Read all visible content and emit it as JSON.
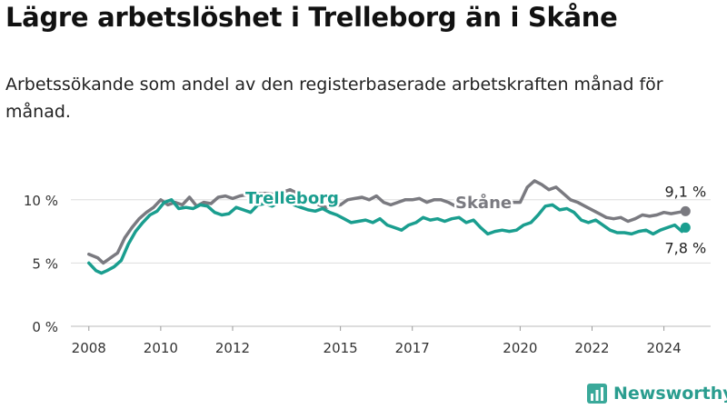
{
  "title": "Lägre arbetslöshet i Trelleborg än i Skåne",
  "subtitle": "Arbetssökande som andel av den registerbaserade arbetskraften månad för månad.",
  "brand": {
    "name": "Newsworthy",
    "icon": "bar-chart-logo-icon"
  },
  "colors": {
    "trelleborg": "#1a9e8f",
    "skane": "#7a7a80",
    "grid": "#dddddd",
    "axis": "#555555"
  },
  "chart_data": {
    "type": "line",
    "title": "Lägre arbetslöshet i Trelleborg än i Skåne",
    "xlabel": "",
    "ylabel": "",
    "xlim": [
      2007.5,
      2025.3
    ],
    "ylim": [
      0,
      12.5
    ],
    "y_ticks": [
      0,
      5,
      10
    ],
    "y_tick_labels": [
      "0 %",
      "5 %",
      "10 %"
    ],
    "x_ticks": [
      2008,
      2010,
      2012,
      2015,
      2017,
      2020,
      2022,
      2024
    ],
    "x_tick_labels": [
      "2008",
      "2010",
      "2012",
      "2015",
      "2017",
      "2020",
      "2022",
      "2024"
    ],
    "grid": "horizontal",
    "legend": "inline labels",
    "series": [
      {
        "name": "Skåne",
        "label": "Skåne",
        "end_label": "9,1 %",
        "x": [
          2008.0,
          2008.25,
          2008.4,
          2008.6,
          2008.8,
          2009.0,
          2009.2,
          2009.4,
          2009.6,
          2009.8,
          2010.0,
          2010.2,
          2010.4,
          2010.6,
          2010.8,
          2011.0,
          2011.2,
          2011.4,
          2011.6,
          2011.8,
          2012.0,
          2012.2,
          2012.4,
          2012.6,
          2012.8,
          2013.0,
          2013.2,
          2013.4,
          2013.6,
          2013.8,
          2014.0,
          2014.2,
          2014.4,
          2014.6,
          2014.8,
          2015.0,
          2015.2,
          2015.4,
          2015.6,
          2015.8,
          2016.0,
          2016.2,
          2016.4,
          2016.6,
          2016.8,
          2017.0,
          2017.2,
          2017.4,
          2017.6,
          2017.8,
          2018.0,
          2018.2,
          2018.4,
          2018.6,
          2018.8,
          2019.0,
          2019.2,
          2019.4,
          2019.6,
          2019.8,
          2020.0,
          2020.2,
          2020.4,
          2020.6,
          2020.8,
          2021.0,
          2021.2,
          2021.4,
          2021.6,
          2021.8,
          2022.0,
          2022.2,
          2022.4,
          2022.6,
          2022.8,
          2023.0,
          2023.2,
          2023.4,
          2023.6,
          2023.8,
          2024.0,
          2024.2,
          2024.4,
          2024.6
        ],
        "values": [
          5.7,
          5.4,
          5.0,
          5.4,
          5.8,
          7.0,
          7.8,
          8.5,
          9.0,
          9.4,
          10.0,
          9.6,
          9.8,
          9.6,
          10.2,
          9.5,
          9.8,
          9.7,
          10.2,
          10.3,
          10.1,
          10.3,
          10.4,
          10.5,
          10.5,
          10.5,
          10.4,
          10.6,
          10.8,
          10.5,
          10.4,
          10.0,
          9.6,
          9.4,
          9.5,
          9.6,
          10.0,
          10.1,
          10.2,
          10.0,
          10.3,
          9.8,
          9.6,
          9.8,
          10.0,
          10.0,
          10.1,
          9.8,
          10.0,
          10.0,
          9.8,
          9.5,
          9.6,
          9.8,
          9.9,
          9.9,
          10.0,
          9.8,
          9.7,
          9.8,
          9.8,
          11.0,
          11.5,
          11.2,
          10.8,
          11.0,
          10.5,
          10.0,
          9.8,
          9.5,
          9.2,
          8.9,
          8.6,
          8.5,
          8.6,
          8.3,
          8.5,
          8.8,
          8.7,
          8.8,
          9.0,
          8.9,
          9.0,
          9.1
        ]
      },
      {
        "name": "Trelleborg",
        "label": "Trelleborg",
        "end_label": "7,8 %",
        "x": [
          2008.0,
          2008.2,
          2008.35,
          2008.5,
          2008.7,
          2008.9,
          2009.1,
          2009.3,
          2009.5,
          2009.7,
          2009.9,
          2010.1,
          2010.3,
          2010.5,
          2010.7,
          2010.9,
          2011.1,
          2011.3,
          2011.5,
          2011.7,
          2011.9,
          2012.1,
          2012.3,
          2012.5,
          2012.7,
          2012.9,
          2013.1,
          2013.3,
          2013.5,
          2013.7,
          2013.9,
          2014.1,
          2014.3,
          2014.5,
          2014.7,
          2014.9,
          2015.1,
          2015.3,
          2015.5,
          2015.7,
          2015.9,
          2016.1,
          2016.3,
          2016.5,
          2016.7,
          2016.9,
          2017.1,
          2017.3,
          2017.5,
          2017.7,
          2017.9,
          2018.1,
          2018.3,
          2018.5,
          2018.7,
          2018.9,
          2019.1,
          2019.3,
          2019.5,
          2019.7,
          2019.9,
          2020.1,
          2020.3,
          2020.5,
          2020.7,
          2020.9,
          2021.1,
          2021.3,
          2021.5,
          2021.7,
          2021.9,
          2022.1,
          2022.3,
          2022.5,
          2022.7,
          2022.9,
          2023.1,
          2023.3,
          2023.5,
          2023.7,
          2023.9,
          2024.1,
          2024.3,
          2024.5,
          2024.6
        ],
        "values": [
          5.0,
          4.4,
          4.2,
          4.4,
          4.7,
          5.2,
          6.5,
          7.5,
          8.2,
          8.8,
          9.1,
          9.8,
          10.0,
          9.3,
          9.4,
          9.3,
          9.6,
          9.5,
          9.0,
          8.8,
          8.9,
          9.4,
          9.2,
          9.0,
          9.6,
          9.7,
          9.5,
          9.8,
          9.9,
          9.6,
          9.4,
          9.2,
          9.1,
          9.3,
          9.0,
          8.8,
          8.5,
          8.2,
          8.3,
          8.4,
          8.2,
          8.5,
          8.0,
          7.8,
          7.6,
          8.0,
          8.2,
          8.6,
          8.4,
          8.5,
          8.3,
          8.5,
          8.6,
          8.2,
          8.4,
          7.8,
          7.3,
          7.5,
          7.6,
          7.5,
          7.6,
          8.0,
          8.2,
          8.8,
          9.5,
          9.6,
          9.2,
          9.3,
          9.0,
          8.4,
          8.2,
          8.4,
          8.0,
          7.6,
          7.4,
          7.4,
          7.3,
          7.5,
          7.6,
          7.3,
          7.6,
          7.8,
          8.0,
          7.5,
          7.8
        ]
      }
    ]
  }
}
